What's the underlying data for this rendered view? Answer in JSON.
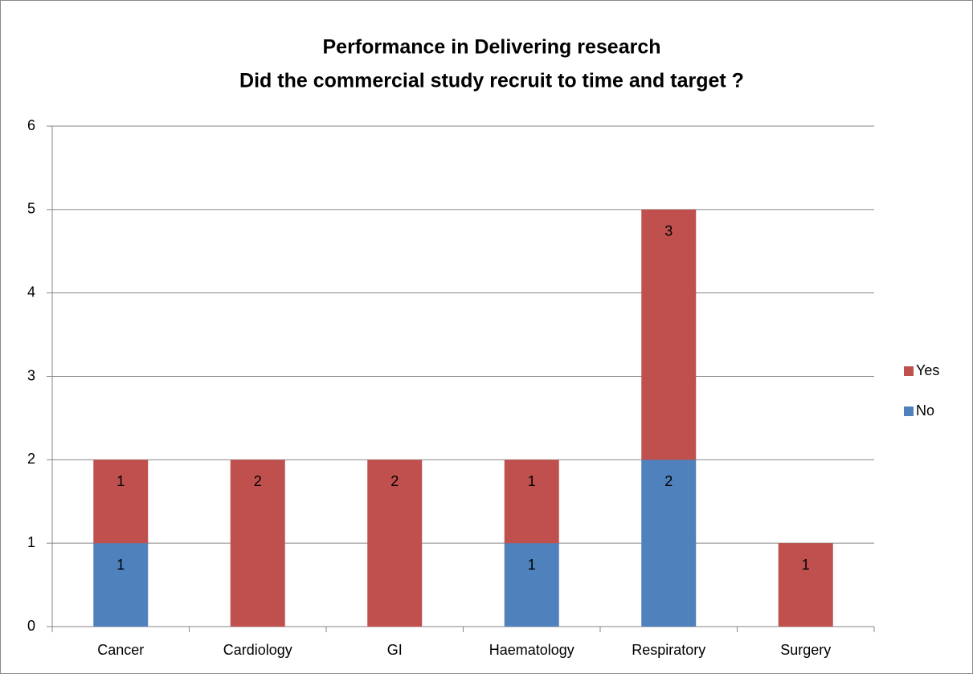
{
  "chart_data": {
    "type": "stacked_bar",
    "title": [
      "Performance in Delivering research",
      "Did the commercial study recruit to time and target ?"
    ],
    "categories": [
      "Cancer",
      "Cardiology",
      "GI",
      "Haematology",
      "Respiratory",
      "Surgery"
    ],
    "series": [
      {
        "name": "No",
        "color": "#4f81bd",
        "values": [
          1,
          0,
          0,
          1,
          2,
          0
        ]
      },
      {
        "name": "Yes",
        "color": "#c0504d",
        "values": [
          1,
          2,
          2,
          1,
          3,
          1
        ]
      }
    ],
    "ylim": [
      0,
      6
    ],
    "yticks": [
      0,
      1,
      2,
      3,
      4,
      5,
      6
    ],
    "grid": true,
    "legend": "right"
  }
}
